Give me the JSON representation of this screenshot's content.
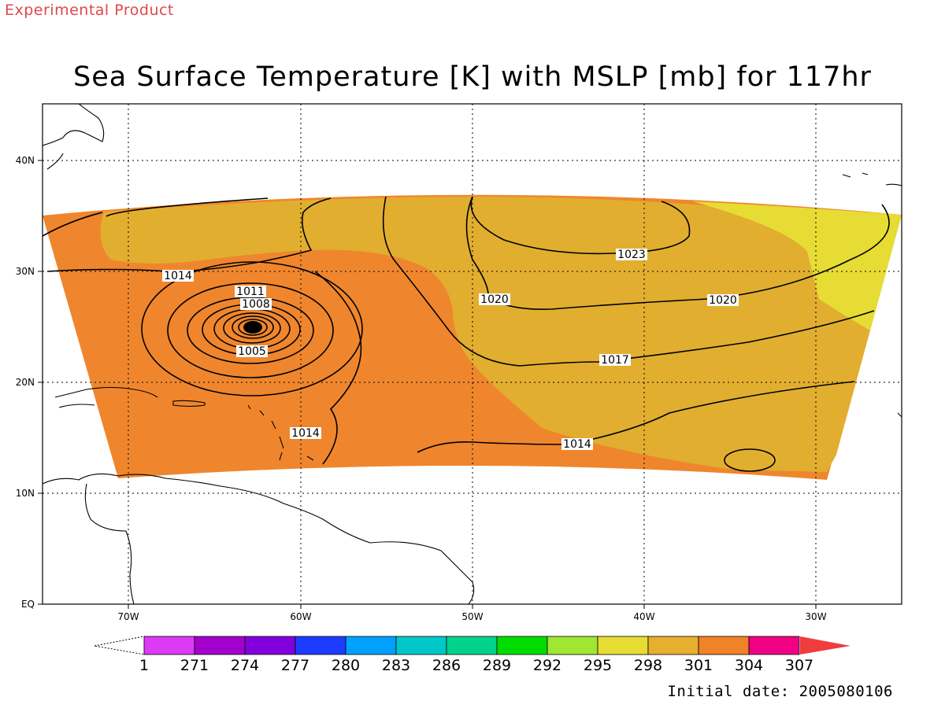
{
  "header": {
    "experimental_label": "Experimental Product",
    "title": "Sea Surface Temperature [K] with MSLP [mb] for 117hr"
  },
  "footer": {
    "initial_date": "Initial date: 2005080106"
  },
  "map": {
    "lon_ticks": [
      "70W",
      "60W",
      "50W",
      "40W",
      "30W"
    ],
    "lat_ticks": [
      "EQ",
      "10N",
      "20N",
      "30N",
      "40N"
    ],
    "grid": true,
    "colors": {
      "sst_warm": "#ef862d",
      "sst_mid": "#e1ae2f",
      "sst_cool": "#e6dc33",
      "coast": "#000000"
    },
    "mslp_contour_labels": [
      "1014",
      "1011",
      "1008",
      "1005",
      "1020",
      "1023",
      "1020",
      "1017",
      "1014",
      "1014"
    ]
  },
  "colorbar": {
    "labels": [
      "1",
      "271",
      "274",
      "277",
      "280",
      "283",
      "286",
      "289",
      "292",
      "295",
      "298",
      "301",
      "304",
      "307"
    ],
    "colors": [
      "#db3bf5",
      "#a300cd",
      "#8200de",
      "#1e3cff",
      "#00a0ff",
      "#00c8c8",
      "#00d28c",
      "#00dc00",
      "#a0e632",
      "#e6dc32",
      "#e6af2d",
      "#f08228",
      "#f00082",
      "#f03c3c"
    ]
  }
}
